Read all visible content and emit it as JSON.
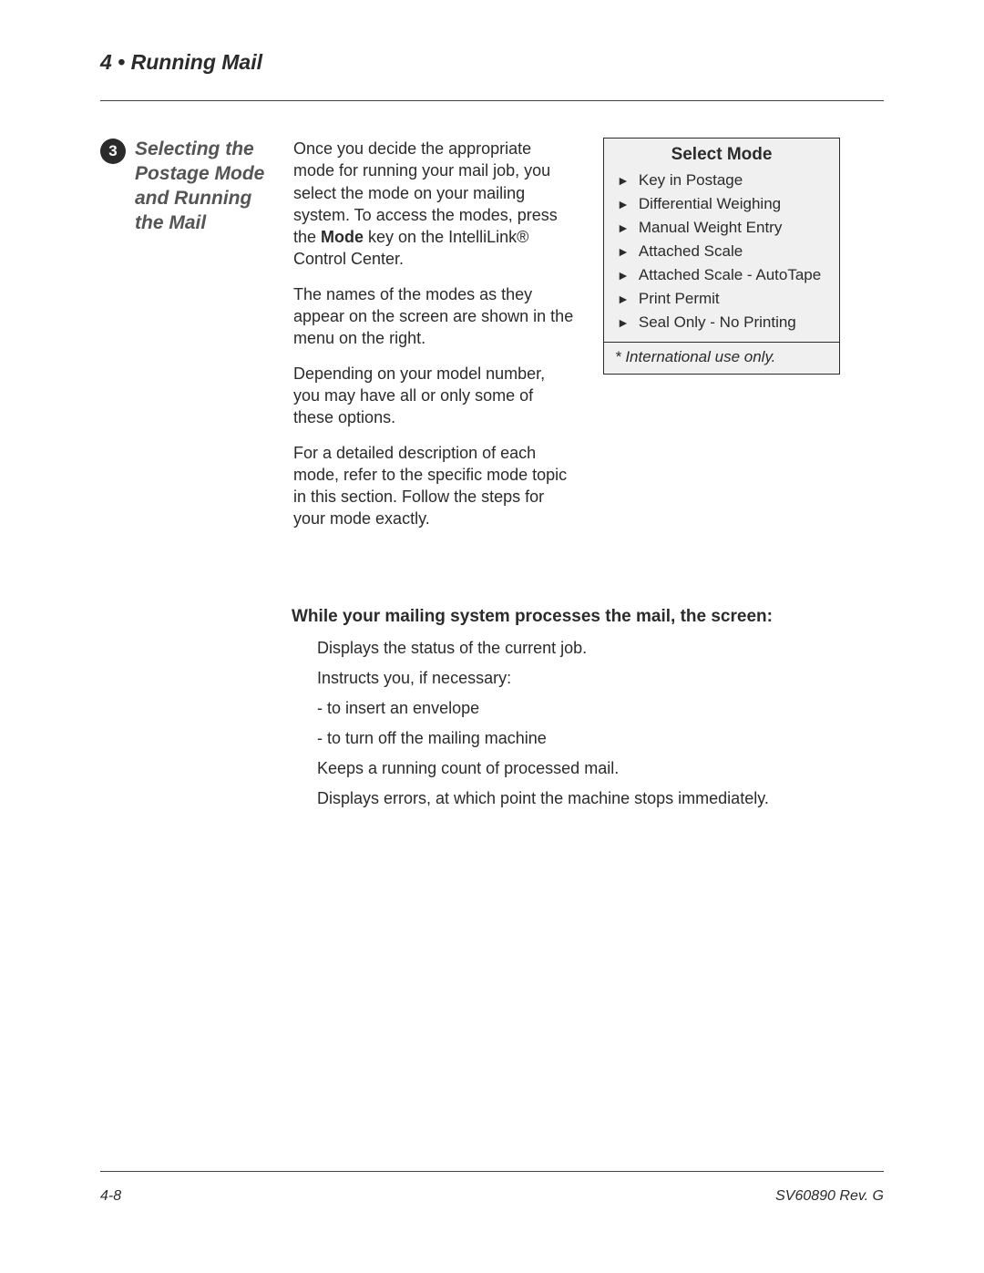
{
  "header": {
    "chapter_title": "4 • Running Mail"
  },
  "step": {
    "number": "3",
    "title": "Selecting the Postage Mode and Running the Mail"
  },
  "body": {
    "p1_pre": "Once you decide the appropriate mode for running your mail job, you select the mode on your mailing system. To access the modes, press the ",
    "p1_bold": "Mode",
    "p1_post": " key on the IntelliLink® Control Center.",
    "p2": "The names of the modes as they appear on the screen are shown in the menu on the right.",
    "p3": "Depending on your model number, you may have all or only some of these options.",
    "p4": "For a detailed description of each mode, refer to the specific mode topic in this section. Follow the steps for your mode exactly."
  },
  "mode_box": {
    "title": "Select Mode",
    "items": [
      "Key in Postage",
      "Differential Weighing",
      "Manual Weight Entry",
      "Attached Scale",
      "Attached Scale - AutoTape",
      "Print Permit",
      "Seal Only - No Printing"
    ],
    "footnote": "* International use only."
  },
  "lower": {
    "heading": "While your mailing system processes the mail, the screen:",
    "items": [
      "Displays the status of the current job.",
      "Instructs you, if necessary:",
      "- to insert an envelope",
      "- to turn off the mailing machine",
      "Keeps a running count of processed mail.",
      "Displays errors, at which point the machine stops immediately."
    ]
  },
  "footer": {
    "page": "4-8",
    "doc": "SV60890 Rev. G"
  },
  "colors": {
    "text": "#2b2b2b",
    "muted": "#555555",
    "box_bg": "#f0f0f0",
    "border": "#444444",
    "page_bg": "#ffffff"
  },
  "typography": {
    "base_font": "Arial, Helvetica, sans-serif",
    "chapter_title_size": 23,
    "step_title_size": 21,
    "body_size": 18,
    "mode_title_size": 19,
    "mode_item_size": 17,
    "footer_size": 16
  }
}
